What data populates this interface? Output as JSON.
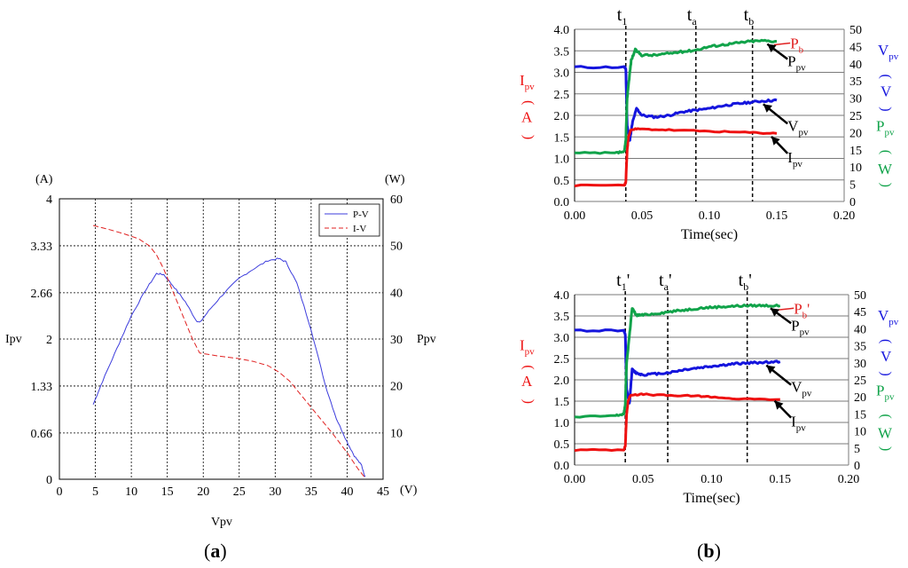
{
  "colors": {
    "pv": "#3c3cdc",
    "iv": "#e02020",
    "ipv": "#ee1111",
    "vpv": "#1515dd",
    "ppv": "#11a34a",
    "grid": "#000000",
    "label": "#000000"
  },
  "panel_a": {
    "label_open": "(",
    "label_letter": "a",
    "label_close": ")"
  },
  "panel_b": {
    "label_open": "(",
    "label_letter": "b",
    "label_close": ")"
  },
  "chart_data": [
    {
      "id": "a",
      "type": "line",
      "xlabel": "Vpv",
      "ylabel_left": "Ipv",
      "ylabel_right": "Ppv",
      "unit_left": "(A)",
      "unit_right": "(W)",
      "unit_x": "(V)",
      "xlim": [
        0,
        45
      ],
      "ylim_left": [
        0,
        4
      ],
      "ylim_right": [
        0,
        60
      ],
      "x_ticks": [
        "0",
        "5",
        "10",
        "15",
        "20",
        "25",
        "30",
        "35",
        "40",
        "45"
      ],
      "y_ticks_left": [
        "0",
        "0.66",
        "1.33",
        "2",
        "2.66",
        "3.33",
        "4"
      ],
      "y_ticks_right": [
        "10",
        "20",
        "30",
        "40",
        "50",
        "60"
      ],
      "legend": [
        "P-V",
        "I-V"
      ],
      "series": [
        {
          "name": "P-V",
          "axis": "right",
          "x": [
            4.7,
            6,
            8,
            10,
            12,
            13.5,
            14.5,
            16,
            17.5,
            19,
            19.5,
            21,
            23,
            25,
            27,
            29,
            30.5,
            31.5,
            33,
            35,
            37,
            38.5,
            40,
            41,
            42,
            42.3,
            42.5
          ],
          "y": [
            16,
            21,
            28,
            35,
            40.5,
            44,
            43.8,
            41,
            38,
            34,
            33.5,
            36.5,
            40,
            43,
            45,
            46.8,
            47.2,
            46.5,
            42,
            32,
            20,
            13,
            8,
            5,
            3,
            1.5,
            0.5
          ]
        },
        {
          "name": "I-V",
          "axis": "left",
          "x": [
            4.7,
            7,
            9,
            11,
            12.5,
            13.5,
            14.5,
            15.5,
            16.5,
            17.5,
            18.5,
            19.5,
            22,
            25,
            27,
            29,
            30.5,
            32,
            34,
            36,
            38,
            40,
            41.5,
            42.5
          ],
          "y": [
            3.62,
            3.56,
            3.5,
            3.43,
            3.33,
            3.2,
            3.0,
            2.75,
            2.5,
            2.25,
            2.0,
            1.8,
            1.76,
            1.72,
            1.68,
            1.62,
            1.53,
            1.4,
            1.15,
            0.9,
            0.65,
            0.38,
            0.15,
            0.02
          ]
        }
      ]
    },
    {
      "id": "b_top",
      "type": "line",
      "xlabel": "Time(sec)",
      "xlim": [
        0,
        0.2
      ],
      "ylim_left": [
        0,
        4
      ],
      "ylim_right": [
        0,
        50
      ],
      "x_ticks": [
        "0.00",
        "0.05",
        "0.10",
        "0.15",
        "0.20"
      ],
      "y_ticks_left": [
        "0.0",
        "0.5",
        "1.0",
        "1.5",
        "2.0",
        "2.5",
        "3.0",
        "3.5",
        "4.0"
      ],
      "y_ticks_right": [
        "0",
        "5",
        "10",
        "15",
        "20",
        "25",
        "30",
        "35",
        "40",
        "45",
        "50"
      ],
      "markers": [
        {
          "t": 0.038,
          "base": "t",
          "sub": "1",
          "prime": ""
        },
        {
          "t": 0.09,
          "base": "t",
          "sub": "a",
          "prime": ""
        },
        {
          "t": 0.132,
          "base": "t",
          "sub": "b",
          "prime": ""
        }
      ],
      "left_label": {
        "sym": "I",
        "sub": "pv",
        "open": "(",
        "unit": "A",
        "close": ")"
      },
      "right_label_v": {
        "sym": "V",
        "sub": "pv",
        "open": "(",
        "unit": "V",
        "close": ")"
      },
      "right_label_p": {
        "sym": "P",
        "sub": "pv",
        "open": "(",
        "unit": "W",
        "close": ")"
      },
      "annotations": [
        {
          "sym": "P",
          "sub": "b",
          "prime": ""
        },
        {
          "sym": "P",
          "sub": "pv",
          "prime": ""
        },
        {
          "sym": "V",
          "sub": "pv",
          "prime": ""
        },
        {
          "sym": "I",
          "sub": "pv",
          "prime": ""
        }
      ],
      "series": [
        {
          "name": "Vpv",
          "axis": "right",
          "x": [
            0.0,
            0.037,
            0.038,
            0.039,
            0.041,
            0.043,
            0.046,
            0.05,
            0.06,
            0.07,
            0.08,
            0.09,
            0.1,
            0.11,
            0.12,
            0.13,
            0.14,
            0.15
          ],
          "y": [
            39,
            39,
            38.5,
            22,
            18,
            23,
            27,
            25,
            24.5,
            25,
            26,
            26.5,
            27,
            27.8,
            28.3,
            28.8,
            29.2,
            29.4
          ]
        },
        {
          "name": "Ipv",
          "axis": "left",
          "x": [
            0.0,
            0.037,
            0.038,
            0.039,
            0.04,
            0.042,
            0.05,
            0.07,
            0.1,
            0.13,
            0.15
          ],
          "y": [
            0.37,
            0.38,
            0.45,
            1.2,
            1.5,
            1.68,
            1.68,
            1.66,
            1.63,
            1.6,
            1.58
          ]
        },
        {
          "name": "Ppv",
          "axis": "right",
          "x": [
            0.0,
            0.03,
            0.037,
            0.038,
            0.039,
            0.04,
            0.042,
            0.045,
            0.05,
            0.06,
            0.07,
            0.08,
            0.09,
            0.1,
            0.11,
            0.12,
            0.13,
            0.14,
            0.15
          ],
          "y": [
            14,
            14,
            14.5,
            18,
            30,
            34,
            41,
            44,
            42.5,
            42.5,
            43,
            43.5,
            44,
            45,
            45.5,
            46,
            46.5,
            46.7,
            46.5
          ]
        }
      ]
    },
    {
      "id": "b_bottom",
      "type": "line",
      "xlabel": "Time(sec)",
      "xlim": [
        0,
        0.2
      ],
      "ylim_left": [
        0,
        4
      ],
      "ylim_right": [
        0,
        50
      ],
      "x_ticks": [
        "0.00",
        "0.05",
        "0.10",
        "0.15",
        "0.20"
      ],
      "y_ticks_left": [
        "0.0",
        "0.5",
        "1.0",
        "1.5",
        "2.0",
        "2.5",
        "3.0",
        "3.5",
        "4.0"
      ],
      "y_ticks_right": [
        "0",
        "5",
        "10",
        "15",
        "20",
        "25",
        "30",
        "35",
        "40",
        "45",
        "50"
      ],
      "markers": [
        {
          "t": 0.037,
          "base": "t",
          "sub": "1",
          "prime": "'"
        },
        {
          "t": 0.068,
          "base": "t",
          "sub": "a",
          "prime": "'"
        },
        {
          "t": 0.126,
          "base": "t",
          "sub": "b",
          "prime": "'"
        }
      ],
      "left_label": {
        "sym": "I",
        "sub": "pv",
        "open": "(",
        "unit": "A",
        "close": ")"
      },
      "right_label_v": {
        "sym": "V",
        "sub": "pv",
        "open": "(",
        "unit": "V",
        "close": ")"
      },
      "right_label_p": {
        "sym": "P",
        "sub": "pv",
        "open": "(",
        "unit": "W",
        "close": ")"
      },
      "annotations": [
        {
          "sym": "P",
          "sub": "b",
          "prime": "'"
        },
        {
          "sym": "P",
          "sub": "pv",
          "prime": ""
        },
        {
          "sym": "V",
          "sub": "pv",
          "prime": ""
        },
        {
          "sym": "I",
          "sub": "pv",
          "prime": ""
        }
      ],
      "series": [
        {
          "name": "Vpv",
          "axis": "right",
          "x": [
            0.0,
            0.036,
            0.037,
            0.038,
            0.04,
            0.042,
            0.045,
            0.05,
            0.06,
            0.07,
            0.08,
            0.09,
            0.1,
            0.11,
            0.12,
            0.13,
            0.14,
            0.15
          ],
          "y": [
            39.5,
            39.5,
            38,
            22,
            18,
            28,
            27,
            26.5,
            26.8,
            27.2,
            28,
            28.5,
            29,
            29.4,
            29.8,
            30,
            30.2,
            30.3
          ]
        },
        {
          "name": "Ipv",
          "axis": "left",
          "x": [
            0.0,
            0.036,
            0.037,
            0.038,
            0.039,
            0.041,
            0.05,
            0.07,
            0.09,
            0.1,
            0.12,
            0.15
          ],
          "y": [
            0.35,
            0.36,
            0.45,
            1.2,
            1.5,
            1.65,
            1.66,
            1.63,
            1.62,
            1.6,
            1.55,
            1.54
          ]
        },
        {
          "name": "Ppv",
          "axis": "right",
          "x": [
            0.0,
            0.03,
            0.036,
            0.037,
            0.038,
            0.04,
            0.042,
            0.045,
            0.05,
            0.06,
            0.07,
            0.08,
            0.09,
            0.1,
            0.11,
            0.12,
            0.13,
            0.14,
            0.15
          ],
          "y": [
            14,
            14.5,
            15,
            18,
            30,
            38,
            46,
            44,
            44,
            44.5,
            45,
            45.5,
            46,
            46.3,
            46.5,
            46.7,
            46.8,
            46.8,
            46.7
          ]
        }
      ]
    }
  ]
}
